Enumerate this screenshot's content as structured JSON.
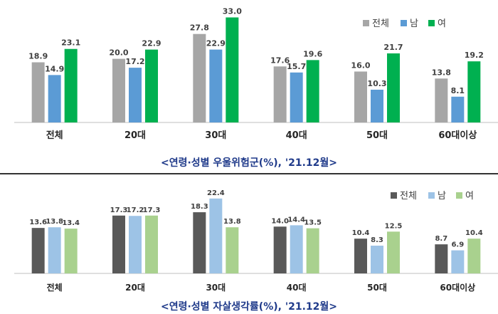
{
  "chart_data": [
    {
      "type": "bar",
      "title": "<연령·성별 우울위험군(%), '21.12월>",
      "categories": [
        "전체",
        "20대",
        "30대",
        "40대",
        "50대",
        "60대이상"
      ],
      "series": [
        {
          "name": "전체",
          "color": "#a6a6a6",
          "values": [
            18.9,
            20.0,
            27.8,
            17.6,
            16.0,
            13.8
          ]
        },
        {
          "name": "남",
          "color": "#5b9bd5",
          "values": [
            14.9,
            17.2,
            22.9,
            15.7,
            10.3,
            8.1
          ]
        },
        {
          "name": "여",
          "color": "#00b050",
          "values": [
            23.1,
            22.9,
            33.0,
            19.6,
            21.7,
            19.2
          ]
        }
      ],
      "value_format": 1,
      "legend_position": "top-right",
      "ylim": [
        0,
        34
      ],
      "grid": false
    },
    {
      "type": "bar",
      "title": "<연령·성별 자살생각률(%), '21.12월>",
      "categories": [
        "전체",
        "20대",
        "30대",
        "40대",
        "50대",
        "60대이상"
      ],
      "series": [
        {
          "name": "전체",
          "color": "#595959",
          "values": [
            13.6,
            17.3,
            18.3,
            14.0,
            10.4,
            8.7
          ]
        },
        {
          "name": "남",
          "color": "#9dc3e6",
          "values": [
            13.8,
            17.2,
            22.4,
            14.4,
            8.3,
            6.9
          ]
        },
        {
          "name": "여",
          "color": "#a9d18e",
          "values": [
            13.4,
            17.3,
            13.8,
            13.5,
            12.5,
            10.4
          ]
        }
      ],
      "value_format": 1,
      "legend_position": "top-right",
      "ylim": [
        0,
        23
      ],
      "grid": false
    }
  ]
}
